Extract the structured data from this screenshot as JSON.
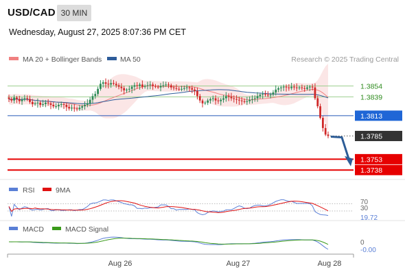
{
  "header": {
    "pair": "USD/CAD",
    "timeframe": "30 MIN",
    "datetime": "Wednesday, August 27, 2025 8:07:36 PM CET"
  },
  "legend": {
    "ma20_bb": "MA 20 + Bollinger Bands",
    "ma50": "MA 50",
    "research": "Research © 2025 Trading Central",
    "colors": {
      "ma20_bb": "#f08080",
      "ma50": "#2e5c9a"
    }
  },
  "chart_data": [
    {
      "type": "line",
      "title": "",
      "y_axis": {
        "min": 1.3725,
        "max": 1.388
      },
      "x_axis": {
        "tick_labels": [
          "Aug 26",
          "Aug 27",
          "Aug 28"
        ],
        "bars_total": 140
      },
      "price_close_series": [
        1.3836,
        1.3834,
        1.3838,
        1.3836,
        1.3833,
        1.3835,
        1.3837,
        1.3836,
        1.3832,
        1.3829,
        1.383,
        1.3831,
        1.3828,
        1.3829,
        1.3831,
        1.383,
        1.3828,
        1.3826,
        1.3826,
        1.3828,
        1.3829,
        1.3828,
        1.3825,
        1.3823,
        1.3824,
        1.3823,
        1.3822,
        1.3824,
        1.3826,
        1.3828,
        1.383,
        1.3835,
        1.384,
        1.3843,
        1.385,
        1.3857,
        1.3859,
        1.3857,
        1.3856,
        1.3858,
        1.3857,
        1.3855,
        1.3853,
        1.3851,
        1.3848,
        1.3849,
        1.385,
        1.3853,
        1.3855,
        1.3854,
        1.3856,
        1.3853,
        1.3854,
        1.3855,
        1.3856,
        1.3854,
        1.3853,
        1.3852,
        1.3854,
        1.3855,
        1.3856,
        1.3855,
        1.3852,
        1.3851,
        1.385,
        1.3849,
        1.385,
        1.3851,
        1.3852,
        1.3851,
        1.3849,
        1.3847,
        1.384,
        1.3834,
        1.383,
        1.3831,
        1.3834,
        1.3836,
        1.3837,
        1.3834,
        1.3833,
        1.3835,
        1.3837,
        1.384,
        1.3839,
        1.3837,
        1.3836,
        1.3835,
        1.3834,
        1.3833,
        1.3832,
        1.3833,
        1.3835,
        1.3836,
        1.3837,
        1.384,
        1.3842,
        1.3843,
        1.3842,
        1.3841,
        1.3842,
        1.3845,
        1.3849,
        1.3851,
        1.3852,
        1.3853,
        1.3852,
        1.3851,
        1.3853,
        1.3852,
        1.3851,
        1.3852,
        1.3851,
        1.385,
        1.3852,
        1.3853,
        1.3852,
        1.3837,
        1.3826,
        1.381,
        1.3796,
        1.3787,
        1.3785
      ],
      "forecast_arrow": {
        "from": 1.3785,
        "to": 1.3746
      },
      "levels": [
        {
          "value": 1.3854,
          "label": "1.3854",
          "kind": "resistance"
        },
        {
          "value": 1.3839,
          "label": "1.3839",
          "kind": "resistance"
        },
        {
          "value": 1.3813,
          "label": "1.3813",
          "kind": "pivot"
        },
        {
          "value": 1.3785,
          "label": "1.3785",
          "kind": "last"
        },
        {
          "value": 1.3753,
          "label": "1.3753",
          "kind": "support"
        },
        {
          "value": 1.3738,
          "label": "1.3738",
          "kind": "support"
        }
      ]
    },
    {
      "type": "line",
      "title": "RSI",
      "series": [
        {
          "name": "RSI",
          "color": "#5a7fd6"
        },
        {
          "name": "9MA",
          "color": "#e01010"
        }
      ],
      "levels": [
        {
          "value": 70,
          "label": "70"
        },
        {
          "value": 30,
          "label": "30"
        }
      ],
      "last_value": "19.72"
    },
    {
      "type": "line",
      "title": "MACD",
      "series": [
        {
          "name": "MACD",
          "color": "#5a7fd6"
        },
        {
          "name": "MACD Signal",
          "color": "#3a9a1a"
        }
      ],
      "zero_label": "0",
      "last_value": "-0.00"
    }
  ]
}
